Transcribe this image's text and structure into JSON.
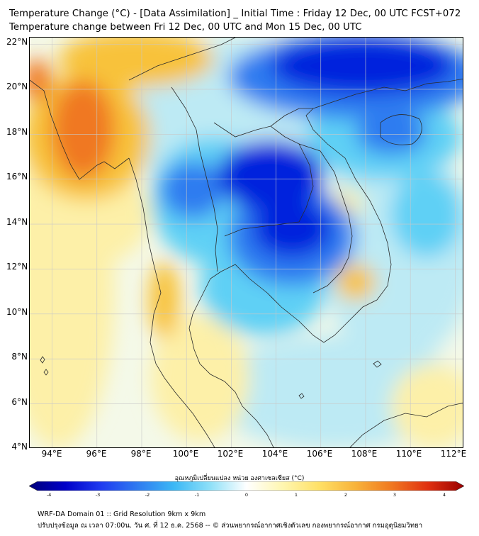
{
  "title": {
    "line1": "Temperature Change (°C) - [Data Assimilation] _ Initial Time : Friday 12 Dec, 00 UTC FCST+072",
    "line2": "Temperature change between Fri 12 Dec, 00 UTC and Mon 15 Dec, 00 UTC"
  },
  "map": {
    "lat_labels": [
      "22°N",
      "20°N",
      "18°N",
      "16°N",
      "14°N",
      "12°N",
      "10°N",
      "8°N",
      "6°N",
      "4°N"
    ],
    "lon_labels": [
      "94°E",
      "96°E",
      "98°E",
      "100°E",
      "102°E",
      "104°E",
      "106°E",
      "108°E",
      "110°E",
      "112°E"
    ],
    "lat_range": [
      4,
      22.3
    ],
    "lon_range": [
      93,
      112.4
    ],
    "grid": true,
    "field_palette": {
      "deep_cold": "#0022dd",
      "cold": "#2f7bf0",
      "cool": "#5fd0f5",
      "slight_cool": "#bdeaf4",
      "neutral": "#f4f9e9",
      "slight_warm": "#fdf0a8",
      "warm": "#f8c23a",
      "hot": "#f07820"
    }
  },
  "colorbar": {
    "title": "อุณหภูมิเปลี่ยนแปลง หน่วย องศาเซลเซียส (°C)",
    "ticks": [
      "-4",
      "-3",
      "-2",
      "-1",
      "0",
      "1",
      "2",
      "3",
      "4"
    ],
    "range": [
      -4,
      4
    ],
    "colors": [
      "#00007a",
      "#0000c8",
      "#1f3cf0",
      "#2f7bf0",
      "#3cb8f5",
      "#8fe0f8",
      "#ffffff",
      "#fff6b0",
      "#ffe066",
      "#f8b33a",
      "#f07820",
      "#e03010",
      "#9a0000"
    ]
  },
  "footer": {
    "line1": "WRF-DA Domain 01 :: Grid Resolution 9km x 9km",
    "line2": "ปรับปรุงข้อมูล ณ เวลา 07:00น. วัน ศ. ที่ 12 ธ.ค. 2568 -- © ส่วนพยากรณ์อากาศเชิงตัวเลข กองพยากรณ์อากาศ กรมอุตุนิยมวิทยา"
  }
}
